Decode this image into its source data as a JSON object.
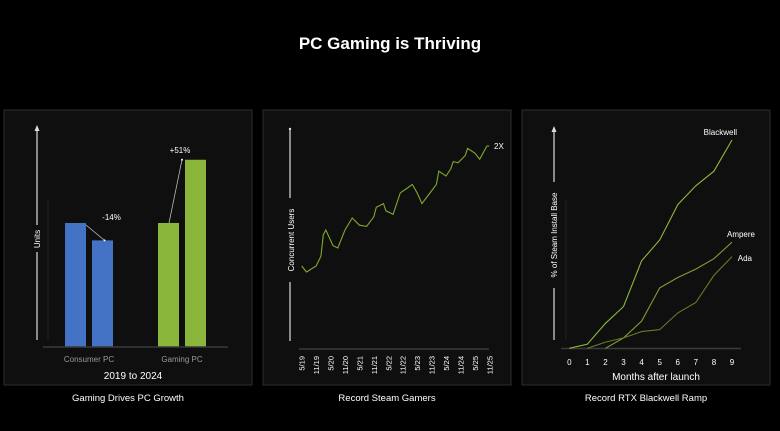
{
  "title": "PC Gaming is Thriving",
  "colors": {
    "background": "#000000",
    "panel": "#0f0f0f",
    "blue": "#4472c4",
    "green": "#8ab73b",
    "line": "#7fa82e",
    "blackwell": "#8db83a",
    "ampere": "#7f9f32",
    "ada": "#627c28"
  },
  "chart_data": [
    {
      "type": "bar",
      "caption": "Gaming Drives PC Growth",
      "ylabel": "Units",
      "xlabel": "2019 to 2024",
      "categories": [
        "Consumer PC",
        "Gaming PC"
      ],
      "series": [
        {
          "values": [
            100,
            100
          ]
        },
        {
          "values": [
            86,
            151
          ]
        }
      ],
      "annotations": [
        "-14%",
        "+51%"
      ],
      "colors": [
        "#4472c4",
        "#8ab73b"
      ]
    },
    {
      "type": "line",
      "caption": "Record Steam Gamers",
      "ylabel": "Concurrent Users",
      "end_label": "2X",
      "x_ticks": [
        "5/19",
        "11/19",
        "5/20",
        "11/20",
        "5/21",
        "11/21",
        "5/22",
        "11/22",
        "5/23",
        "11/23",
        "5/24",
        "11/24",
        "5/25",
        "11/25"
      ],
      "ylim": [
        0.3,
        2.15
      ],
      "points": [
        [
          "2019-05",
          1.0
        ],
        [
          "2019-07",
          0.95
        ],
        [
          "2019-11",
          1.0
        ],
        [
          "2020-01",
          1.08
        ],
        [
          "2020-02",
          1.26
        ],
        [
          "2020-03",
          1.3
        ],
        [
          "2020-06",
          1.17
        ],
        [
          "2020-08",
          1.15
        ],
        [
          "2020-11",
          1.3
        ],
        [
          "2021-02",
          1.4
        ],
        [
          "2021-05",
          1.34
        ],
        [
          "2021-08",
          1.33
        ],
        [
          "2021-11",
          1.41
        ],
        [
          "2021-12",
          1.49
        ],
        [
          "2022-03",
          1.52
        ],
        [
          "2022-04",
          1.46
        ],
        [
          "2022-07",
          1.43
        ],
        [
          "2022-10",
          1.61
        ],
        [
          "2023-01",
          1.65
        ],
        [
          "2023-03",
          1.68
        ],
        [
          "2023-05",
          1.61
        ],
        [
          "2023-07",
          1.52
        ],
        [
          "2023-10",
          1.6
        ],
        [
          "2024-01",
          1.68
        ],
        [
          "2024-02",
          1.79
        ],
        [
          "2024-05",
          1.75
        ],
        [
          "2024-07",
          1.81
        ],
        [
          "2024-08",
          1.87
        ],
        [
          "2024-10",
          1.86
        ],
        [
          "2025-01",
          1.92
        ],
        [
          "2025-02",
          1.98
        ],
        [
          "2025-05",
          1.94
        ],
        [
          "2025-07",
          1.89
        ],
        [
          "2025-10",
          2.0
        ],
        [
          "2025-11",
          2.0
        ]
      ]
    },
    {
      "type": "line",
      "caption": "Record RTX Blackwell Ramp",
      "ylabel": "% of Steam Install Base",
      "xlabel": "Months after launch",
      "x_ticks": [
        "0",
        "1",
        "2",
        "3",
        "4",
        "5",
        "6",
        "7",
        "8",
        "9"
      ],
      "ylim": [
        0,
        105
      ],
      "series": [
        {
          "name": "Blackwell",
          "x": [
            0,
            1,
            2,
            3,
            4,
            5,
            6,
            7,
            8,
            9
          ],
          "values": [
            0,
            2,
            12,
            20,
            42,
            52,
            69,
            78,
            85,
            100
          ],
          "color": "#8db83a"
        },
        {
          "name": "Ampere",
          "x": [
            2,
            3,
            4,
            5,
            6,
            7,
            8,
            9
          ],
          "values": [
            0,
            5,
            13,
            29,
            34,
            38,
            43,
            51
          ],
          "color": "#7f9f32"
        },
        {
          "name": "Ada",
          "x": [
            1,
            2,
            3,
            4,
            5,
            6,
            7,
            8,
            9
          ],
          "values": [
            0,
            3,
            5,
            8,
            9,
            17,
            22,
            35,
            44
          ],
          "color": "#627c28"
        }
      ]
    }
  ]
}
